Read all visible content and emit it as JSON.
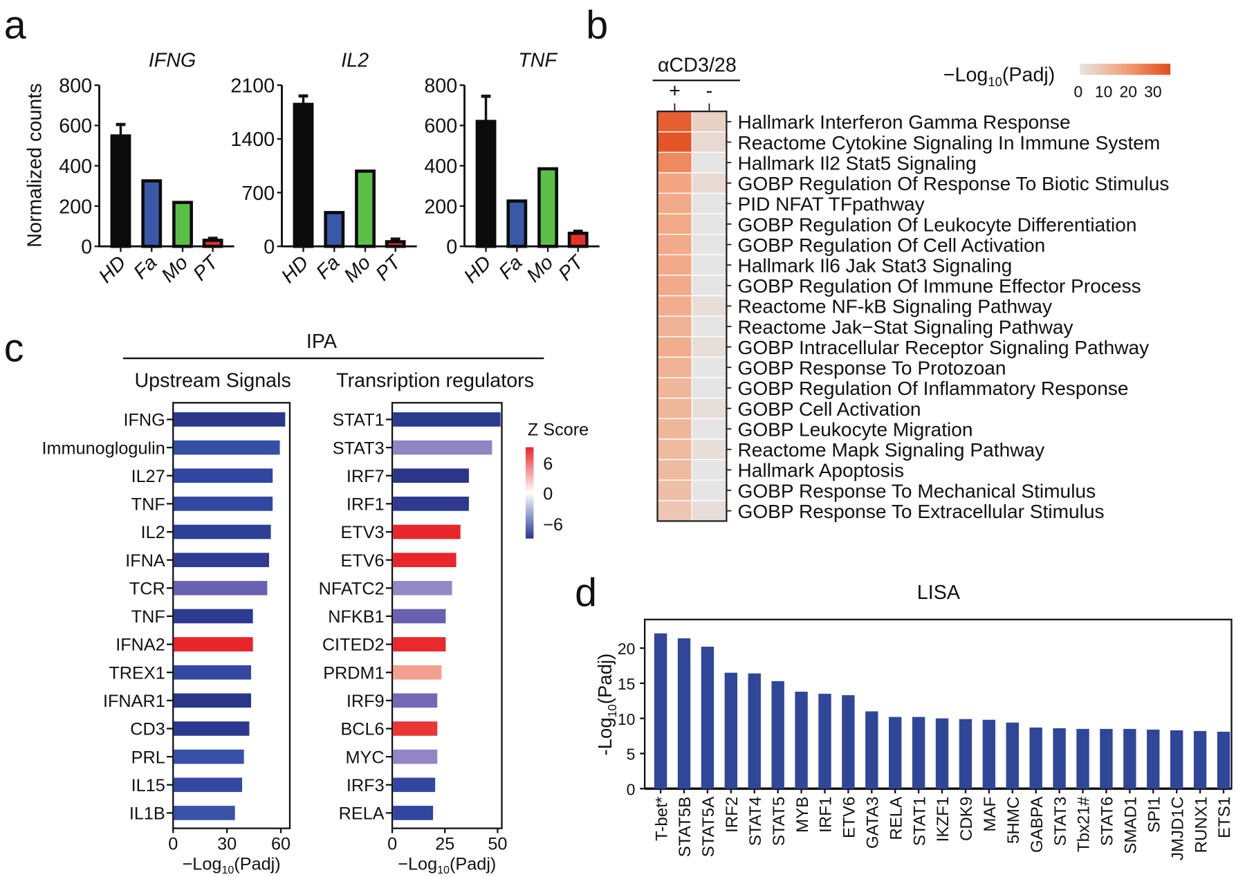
{
  "panel_labels": {
    "a": "a",
    "b": "b",
    "c": "c",
    "d": "d"
  },
  "colors": {
    "HD": "#0b0b0b",
    "Fa": "#3a58a8",
    "Mo": "#5cbf45",
    "PT": "#e8302a",
    "lisa_bar": "#2f4699"
  },
  "chart_data": {
    "panel_a": {
      "type": "bar",
      "ylabel": "Normalized counts",
      "categories": [
        "HD",
        "Fa",
        "Mo",
        "PT"
      ],
      "subplots": [
        {
          "title": "IFNG",
          "ylim": [
            0,
            800
          ],
          "ticks": [
            "0",
            "200",
            "400",
            "600",
            "800"
          ],
          "tick_values": [
            0,
            200,
            400,
            600,
            800
          ],
          "values": [
            548,
            325,
            218,
            30
          ],
          "errors": [
            605,
            null,
            null,
            40
          ]
        },
        {
          "title": "IL2",
          "ylim": [
            0,
            2100
          ],
          "ticks": [
            "0",
            "700",
            "1400",
            "2100"
          ],
          "tick_values": [
            0,
            700,
            1400,
            2100
          ],
          "values": [
            1850,
            440,
            980,
            60
          ],
          "errors": [
            1960,
            null,
            null,
            95
          ]
        },
        {
          "title": "TNF",
          "ylim": [
            0,
            800
          ],
          "ticks": [
            "0",
            "200",
            "400",
            "600",
            "800"
          ],
          "tick_values": [
            0,
            200,
            400,
            600,
            800
          ],
          "values": [
            620,
            225,
            385,
            65
          ],
          "errors": [
            745,
            null,
            null,
            75
          ]
        }
      ]
    },
    "panel_b": {
      "type": "heatmap",
      "group_label": "αCD3/28",
      "columns": [
        "+",
        "-"
      ],
      "legend_title": "−Log",
      "legend_sub": "10",
      "legend_tail": "(Padj)",
      "legend_ticks": [
        "0",
        "10",
        "20",
        "30"
      ],
      "legend_range": [
        0,
        35
      ],
      "rows": [
        "Hallmark Interferon Gamma Response",
        "Reactome Cytokine Signaling In Immune System",
        "Hallmark Il2 Stat5 Signaling",
        "GOBP Regulation Of Response To Biotic Stimulus",
        "PID NFAT TFpathway",
        "GOBP Regulation Of Leukocyte Differentiation",
        "GOBP Regulation Of Cell Activation",
        "Hallmark Il6 Jak Stat3 Signaling",
        "GOBP Regulation Of Immune Effector Process",
        "Reactome NF-kB Signaling Pathway",
        "Reactome Jak−Stat Signaling Pathway",
        "GOBP Intracellular Receptor Signaling Pathway",
        "GOBP Response To Protozoan",
        "GOBP Regulation Of Inflammatory Response",
        "GOBP Cell Activation",
        "GOBP Leukocyte Migration",
        "Reactome Mapk Signaling Pathway",
        "Hallmark Apoptosis",
        "GOBP Response To Mechanical Stimulus",
        "GOBP Response To Extracellular Stimulus"
      ],
      "values_plus": [
        31,
        33,
        22,
        16,
        15,
        15,
        15,
        15,
        15,
        14,
        13,
        14,
        13,
        12,
        12,
        12,
        11,
        11,
        10,
        8
      ],
      "values_minus": [
        5,
        3,
        0,
        3,
        0,
        0,
        0,
        0,
        0,
        2,
        0,
        2,
        0,
        0,
        2,
        0,
        2,
        0,
        0,
        2
      ]
    },
    "panel_c": {
      "type": "bar",
      "title": "IPA",
      "xlabel_pre": "−Log",
      "xlabel_sub": "10",
      "xlabel_post": "(Padj)",
      "zscore_title": "Z Score",
      "zscore_ticks": [
        "6",
        "0",
        "−6"
      ],
      "subplots": [
        {
          "title": "Upstream Signals",
          "xlim": [
            0,
            65
          ],
          "ticks": [
            "0",
            "30",
            "60"
          ],
          "tick_values": [
            0,
            30,
            60
          ],
          "categories": [
            "IFNG",
            "Immunoglogulin",
            "IL27",
            "TNF",
            "IL2",
            "IFNA",
            "TCR",
            "TNF",
            "IFNA2",
            "TREX1",
            "IFNAR1",
            "CD3",
            "PRL",
            "IL15",
            "IL1B"
          ],
          "values": [
            62,
            59,
            55,
            55,
            54,
            53,
            52,
            44,
            44,
            43,
            43,
            42,
            39,
            38,
            34
          ],
          "colors": [
            "#2a3788",
            "#3350a6",
            "#3046a0",
            "#3147a0",
            "#2e3f98",
            "#2e3c94",
            "#6a62b2",
            "#2d3b92",
            "#e8262b",
            "#3147a0",
            "#2b3688",
            "#2d3890",
            "#3850a8",
            "#3348a2",
            "#3a52a8"
          ]
        },
        {
          "title": "Transription regulators",
          "xlim": [
            0,
            52
          ],
          "ticks": [
            "0",
            "25",
            "50"
          ],
          "tick_values": [
            0,
            25,
            50
          ],
          "categories": [
            "STAT1",
            "STAT3",
            "IRF7",
            "IRF1",
            "ETV3",
            "ETV6",
            "NFATC2",
            "NFKB1",
            "CITED2",
            "PRDM1",
            "IRF9",
            "BCL6",
            "MYC",
            "IRF3",
            "RELA"
          ],
          "values": [
            51,
            47,
            36,
            36,
            32,
            30,
            28,
            25,
            25,
            23,
            21,
            21,
            21,
            20,
            19
          ],
          "colors": [
            "#2c3a90",
            "#9185c4",
            "#2b3688",
            "#2d3a90",
            "#e8262b",
            "#e8262b",
            "#9488c6",
            "#6a60b0",
            "#e8292d",
            "#f4a090",
            "#7468b6",
            "#ea3535",
            "#9185c4",
            "#3147a0",
            "#3046a0"
          ]
        }
      ]
    },
    "panel_d": {
      "type": "bar",
      "title": "LISA",
      "ylabel_pre": "-Log",
      "ylabel_sub": "10",
      "ylabel_post": "(Padj)",
      "ylim": [
        0,
        24
      ],
      "ticks": [
        "0",
        "5",
        "10",
        "15",
        "20"
      ],
      "tick_values": [
        0,
        5,
        10,
        15,
        20
      ],
      "categories": [
        "T-bet*",
        "STAT5B",
        "STAT5A",
        "IRF2",
        "STAT4",
        "STAT5",
        "MYB",
        "IRF1",
        "ETV6",
        "GATA3",
        "RELA",
        "STAT1",
        "IKZF1",
        "CDK9",
        "MAF",
        "5HMC",
        "GABPA",
        "STAT3",
        "Tbx21#",
        "STAT6",
        "SMAD1",
        "SPI1",
        "JMJD1C",
        "RUNX1",
        "ETS1"
      ],
      "values": [
        22.1,
        21.4,
        20.2,
        16.5,
        16.4,
        15.3,
        13.8,
        13.5,
        13.3,
        11.0,
        10.2,
        10.2,
        10.0,
        9.9,
        9.8,
        9.4,
        8.7,
        8.6,
        8.5,
        8.5,
        8.5,
        8.4,
        8.3,
        8.2,
        8.1
      ]
    }
  }
}
